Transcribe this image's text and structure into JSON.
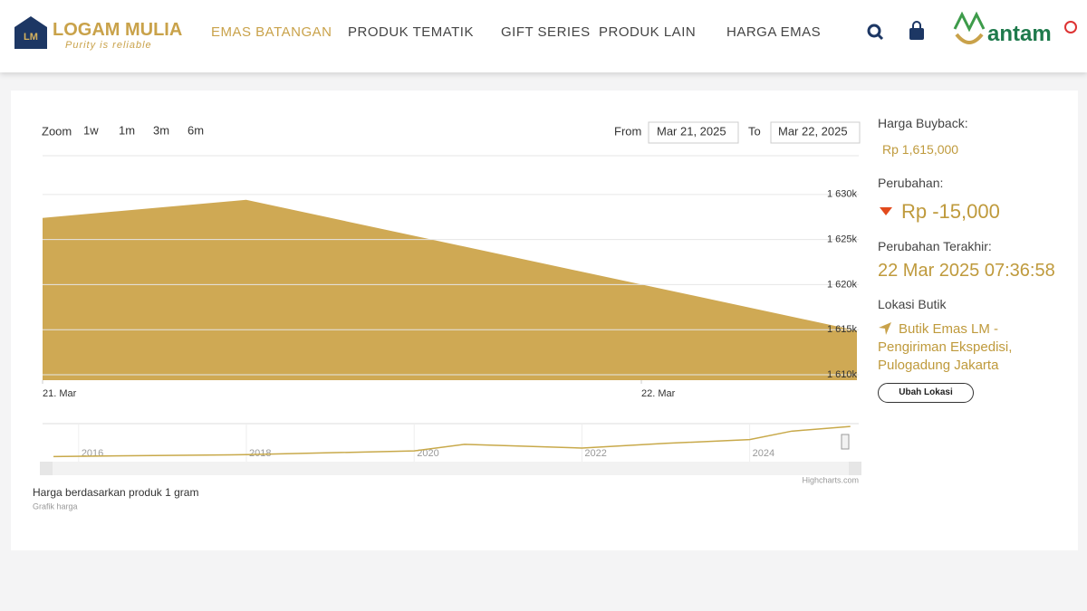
{
  "header": {
    "logo_mark": "LM",
    "brand": "LOGAM MULIA",
    "tagline": "Purity is reliable",
    "nav": [
      "EMAS BATANGAN",
      "PRODUK TEMATIK",
      "GIFT SERIES",
      "PRODUK LAIN",
      "HARGA EMAS"
    ],
    "partner": "antam"
  },
  "range_selector": {
    "zoom_label": "Zoom",
    "buttons": [
      "1w",
      "1m",
      "3m",
      "6m"
    ],
    "from_label": "From",
    "from": "Mar 21, 2025",
    "to_label": "To",
    "to": "Mar 22, 2025"
  },
  "chart_data": [
    {
      "type": "area",
      "title": "Harga berdasarkan produk 1 gram",
      "subtitle": "Grafik harga",
      "credits": "Highcharts.com",
      "x": [
        0,
        0.34,
        1.36
      ],
      "values": [
        1627400,
        1629400,
        1614900
      ],
      "color": "#cfa954",
      "xlim": [
        0,
        1.363
      ],
      "xticks": [
        {
          "value": 0,
          "label": "21. Mar"
        },
        {
          "value": 1,
          "label": "22. Mar"
        }
      ],
      "ylim": [
        1609400,
        1634300
      ],
      "yticks": [
        {
          "value": 1610000,
          "label": "1 610k"
        },
        {
          "value": 1615000,
          "label": "1 615k"
        },
        {
          "value": 1620000,
          "label": "1 620k"
        },
        {
          "value": 1625000,
          "label": "1 625k"
        },
        {
          "value": 1630000,
          "label": "1 630k"
        }
      ],
      "grid": true
    },
    {
      "type": "line",
      "x": [
        2015.7,
        2018,
        2020,
        2020.6,
        2022,
        2023,
        2024,
        2024.5,
        2025.2
      ],
      "values": [
        556000,
        621000,
        752000,
        981000,
        850000,
        1014000,
        1144000,
        1438000,
        1602000
      ],
      "color": "#c8a94a",
      "xlim": [
        2015.57,
        2025.3
      ],
      "xticks": [
        2016,
        2018,
        2020,
        2022,
        2024
      ],
      "ylim": [
        0,
        1700000
      ],
      "grid": true
    }
  ],
  "side": {
    "buyback_label": "Harga Buyback:",
    "buyback": "Rp 1,615,000",
    "change_label": "Perubahan:",
    "change": "Rp -15,000",
    "updated_label": "Perubahan Terakhir:",
    "updated": "22 Mar 2025 07:36:58",
    "location_label": "Lokasi Butik",
    "location": "Butik Emas LM - Pengiriman Ekspedisi, Pulogadung Jakarta",
    "button": "Ubah Lokasi"
  }
}
